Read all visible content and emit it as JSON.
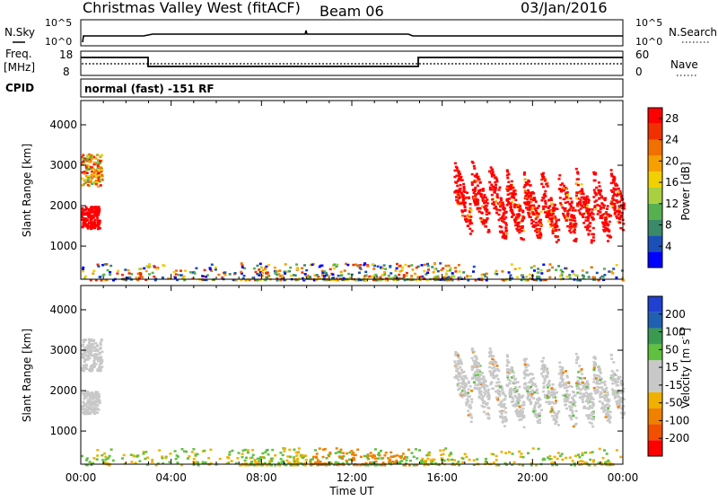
{
  "header": {
    "title": "Christmas Valley West (fitACF)",
    "beam": "Beam 06",
    "date": "03/Jan/2016"
  },
  "strip_panels": {
    "nsky_label": "N.Sky",
    "nsearch_label": "N.Search",
    "nsky_ticks": [
      "10^5",
      "10^0"
    ],
    "nsearch_ticks": [
      "10^5",
      "10^0"
    ],
    "freq_label_line1": "Freq.",
    "freq_label_line2": "[MHz]",
    "freq_ticks": [
      "18",
      "8"
    ],
    "nave_label": "Nave",
    "nave_ticks": [
      "60",
      "0"
    ],
    "cpid_label": "CPID",
    "cpid_text": "normal (fast) -151 RF"
  },
  "colors": {
    "power_scale": [
      "#0000ff",
      "#1c50b8",
      "#3a8a6a",
      "#56b050",
      "#a8d040",
      "#f0d000",
      "#f5a000",
      "#f07000",
      "#f03000",
      "#ff0000"
    ],
    "velocity_scale": [
      "#ff0000",
      "#f05000",
      "#f08000",
      "#f0b000",
      "#c8c8c8",
      "#c8c8c8",
      "#60c040",
      "#3a9a50",
      "#2060b0",
      "#2040d0"
    ],
    "ground_scatter": "#c8c8c8"
  },
  "chart_data": [
    {
      "type": "heatmap",
      "title": "",
      "xlabel": "",
      "ylabel": "Slant Range [km]",
      "x_ticks": [
        "00:00",
        "04:00",
        "08:00",
        "12:00",
        "16:00",
        "20:00",
        "00:00"
      ],
      "y_ticks": [
        "1000",
        "2000",
        "3000",
        "4000"
      ],
      "ylim": [
        180,
        4600
      ],
      "xlim_hours": [
        0,
        24
      ],
      "colorbar": {
        "label": "Power [dB]",
        "ticks": [
          "4",
          "8",
          "12",
          "16",
          "20",
          "24",
          "28"
        ],
        "range": [
          0,
          30
        ]
      },
      "regions": [
        {
          "name": "early-evening-high",
          "t_start": 0.0,
          "t_end": 0.9,
          "r_start": 2500,
          "r_end": 3300,
          "value": "mixed 20-28"
        },
        {
          "name": "early-evening-low",
          "t_start": 0.0,
          "t_end": 0.8,
          "r_start": 1450,
          "r_end": 2000,
          "value": "28"
        },
        {
          "name": "near-range",
          "t_start": 0.0,
          "t_end": 24.0,
          "r_start": 180,
          "r_end": 600,
          "value": "mixed 4-28"
        },
        {
          "name": "evening-band",
          "t_start": 16.5,
          "t_end": 24.0,
          "r_start": 1100,
          "r_end": 3200,
          "value": "28"
        }
      ]
    },
    {
      "type": "heatmap",
      "title": "",
      "xlabel": "Time UT",
      "ylabel": "Slant Range [km]",
      "x_ticks": [
        "00:00",
        "04:00",
        "08:00",
        "12:00",
        "16:00",
        "20:00",
        "00:00"
      ],
      "y_ticks": [
        "1000",
        "2000",
        "3000",
        "4000"
      ],
      "ylim": [
        180,
        4600
      ],
      "xlim_hours": [
        0,
        24
      ],
      "colorbar": {
        "label": "Velocity [m s",
        "label_sup": "-1",
        "label_end": "]",
        "ticks": [
          "200",
          "100",
          "50",
          "15",
          "-15",
          "-50",
          "-100",
          "-200"
        ],
        "range": [
          -250,
          250
        ]
      },
      "regions": [
        {
          "name": "early-evening-high",
          "t_start": 0.0,
          "t_end": 0.9,
          "r_start": 2500,
          "r_end": 3300,
          "value": "ground scatter"
        },
        {
          "name": "early-evening-low",
          "t_start": 0.0,
          "t_end": 0.8,
          "r_start": 1450,
          "r_end": 2000,
          "value": "ground scatter"
        },
        {
          "name": "near-range",
          "t_start": 0.0,
          "t_end": 24.0,
          "r_start": 180,
          "r_end": 600,
          "value": "-50 to 50"
        },
        {
          "name": "evening-band",
          "t_start": 16.5,
          "t_end": 24.0,
          "r_start": 1100,
          "r_end": 3200,
          "value": "ground scatter"
        }
      ]
    }
  ]
}
